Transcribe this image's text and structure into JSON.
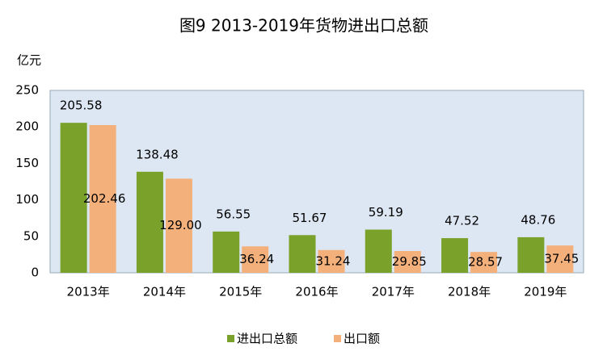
{
  "chart_data": {
    "type": "bar",
    "title": "图9 2013-2019年货物进出口总额",
    "y_label": "亿元",
    "categories": [
      "2013年",
      "2014年",
      "2015年",
      "2016年",
      "2017年",
      "2018年",
      "2019年"
    ],
    "series": [
      {
        "name": "进出口总额",
        "color": "#7aa22a",
        "values": [
          205.58,
          138.48,
          56.55,
          51.67,
          59.19,
          47.52,
          48.76
        ],
        "value_labels": [
          "205.58",
          "138.48",
          "56.55",
          "51.67",
          "59.19",
          "47.52",
          "48.76"
        ]
      },
      {
        "name": "出口额",
        "color": "#f4b07a",
        "values": [
          202.46,
          129.0,
          36.24,
          31.24,
          29.85,
          28.57,
          37.45
        ],
        "value_labels": [
          "202.46",
          "129.00",
          "36.24",
          "31.24",
          "29.85",
          "28.57",
          "37.45"
        ]
      }
    ],
    "ylim": [
      0,
      250
    ],
    "yticks": [
      0,
      50,
      100,
      150,
      200,
      250
    ],
    "grid": false,
    "legend": "bottom"
  }
}
